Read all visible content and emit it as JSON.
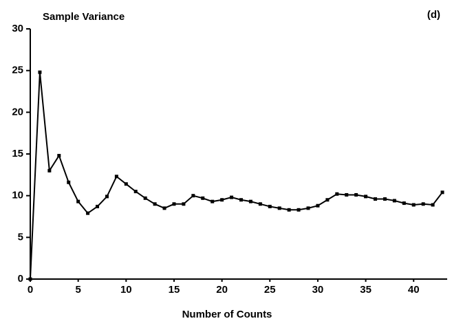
{
  "chart_data": {
    "type": "line",
    "title": "Sample Variance",
    "annotation": "(d)",
    "xlabel": "Number of Counts",
    "x": [
      0,
      1,
      2,
      3,
      4,
      5,
      6,
      7,
      8,
      9,
      10,
      11,
      12,
      13,
      14,
      15,
      16,
      17,
      18,
      19,
      20,
      21,
      22,
      23,
      24,
      25,
      26,
      27,
      28,
      29,
      30,
      31,
      32,
      33,
      34,
      35,
      36,
      37,
      38,
      39,
      40,
      41,
      42,
      43
    ],
    "series": [
      {
        "name": "Sample Variance",
        "color": "#000000",
        "values": [
          0,
          24.8,
          13,
          14.8,
          11.6,
          9.3,
          7.9,
          8.7,
          9.9,
          12.3,
          11.4,
          10.5,
          9.7,
          9.0,
          8.5,
          9.0,
          9.0,
          10.0,
          9.7,
          9.3,
          9.5,
          9.8,
          9.5,
          9.3,
          9.0,
          8.7,
          8.5,
          8.3,
          8.3,
          8.5,
          8.8,
          9.5,
          10.2,
          10.1,
          10.1,
          9.9,
          9.6,
          9.6,
          9.4,
          9.1,
          8.9,
          9.0,
          8.9,
          10.4
        ]
      }
    ],
    "xlim": [
      0,
      43.5
    ],
    "ylim": [
      0,
      30
    ],
    "xticks": [
      0,
      5,
      10,
      15,
      20,
      25,
      30,
      35,
      40
    ],
    "yticks": [
      0,
      5,
      10,
      15,
      20,
      25,
      30
    ]
  }
}
